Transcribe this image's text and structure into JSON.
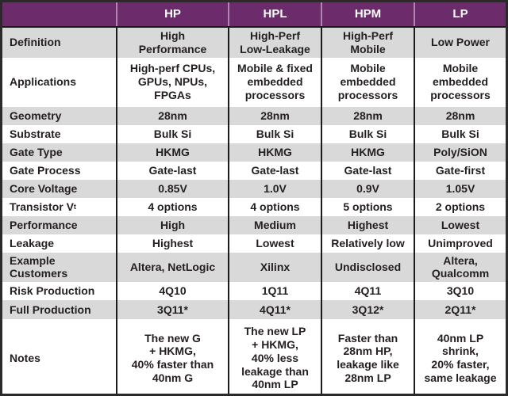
{
  "table": {
    "header": {
      "corner": "",
      "columns": [
        "HP",
        "HPL",
        "HPM",
        "LP"
      ]
    },
    "rows": [
      {
        "label": "Definition",
        "values": [
          "High\nPerformance",
          "High-Perf\nLow-Leakage",
          "High-Perf\nMobile",
          "Low Power"
        ]
      },
      {
        "label": "Applications",
        "values": [
          "High-perf CPUs,\nGPUs, NPUs,\nFPGAs",
          "Mobile & fixed\nembedded\nprocessors",
          "Mobile\nembedded\nprocessors",
          "Mobile\nembedded\nprocessors"
        ]
      },
      {
        "label": "Geometry",
        "values": [
          "28nm",
          "28nm",
          "28nm",
          "28nm"
        ]
      },
      {
        "label": "Substrate",
        "values": [
          "Bulk Si",
          "Bulk Si",
          "Bulk Si",
          "Bulk Si"
        ]
      },
      {
        "label": "Gate Type",
        "values": [
          "HKMG",
          "HKMG",
          "HKMG",
          "Poly/SiON"
        ]
      },
      {
        "label": "Gate Process",
        "values": [
          "Gate-last",
          "Gate-last",
          "Gate-last",
          "Gate-first"
        ]
      },
      {
        "label": "Core Voltage",
        "values": [
          "0.85V",
          "1.0V",
          "0.9V",
          "1.05V"
        ]
      },
      {
        "label": "Transistor V",
        "label_sub": "t",
        "values": [
          "4 options",
          "4 options",
          "5 options",
          "2 options"
        ]
      },
      {
        "label": "Performance",
        "values": [
          "High",
          "Medium",
          "Highest",
          "Lowest"
        ]
      },
      {
        "label": "Leakage",
        "values": [
          "Highest",
          "Lowest",
          "Relatively low",
          "Unimproved"
        ]
      },
      {
        "label": "Example\nCustomers",
        "values": [
          "Altera, NetLogic",
          "Xilinx",
          "Undisclosed",
          "Altera,\nQualcomm"
        ]
      },
      {
        "label": "Risk Production",
        "values": [
          "4Q10",
          "1Q11",
          "4Q11",
          "3Q10"
        ]
      },
      {
        "label": "Full Production",
        "values": [
          "3Q11*",
          "4Q11*",
          "3Q12*",
          "2Q11*"
        ]
      },
      {
        "label": "Notes",
        "values": [
          "The new G\n+ HKMG,\n40% faster than\n40nm G",
          "The new LP\n+ HKMG,\n40% less\nleakage than\n40nm LP",
          "Faster than\n28nm HP,\nleakage like\n28nm LP",
          "40nm LP\nshrink,\n20% faster,\nsame leakage"
        ]
      }
    ]
  },
  "colors": {
    "header_bg": "#6c2b6b",
    "header_text": "#ffffff",
    "header_divider": "#b286b2",
    "row_shade": "#d9d9d9",
    "row_plain": "#ffffff",
    "grid_line": "#1b1b1b",
    "outer_border": "#2a2a2a",
    "text": "#231f20"
  },
  "chart_data": {
    "type": "table",
    "title": "28nm process technology comparison",
    "columns": [
      "",
      "HP",
      "HPL",
      "HPM",
      "LP"
    ],
    "rows": [
      [
        "Definition",
        "High Performance",
        "High-Perf Low-Leakage",
        "High-Perf Mobile",
        "Low Power"
      ],
      [
        "Applications",
        "High-perf CPUs, GPUs, NPUs, FPGAs",
        "Mobile & fixed embedded processors",
        "Mobile embedded processors",
        "Mobile embedded processors"
      ],
      [
        "Geometry",
        "28nm",
        "28nm",
        "28nm",
        "28nm"
      ],
      [
        "Substrate",
        "Bulk Si",
        "Bulk Si",
        "Bulk Si",
        "Bulk Si"
      ],
      [
        "Gate Type",
        "HKMG",
        "HKMG",
        "HKMG",
        "Poly/SiON"
      ],
      [
        "Gate Process",
        "Gate-last",
        "Gate-last",
        "Gate-last",
        "Gate-first"
      ],
      [
        "Core Voltage",
        "0.85V",
        "1.0V",
        "0.9V",
        "1.05V"
      ],
      [
        "Transistor Vt",
        "4 options",
        "4 options",
        "5 options",
        "2 options"
      ],
      [
        "Performance",
        "High",
        "Medium",
        "Highest",
        "Lowest"
      ],
      [
        "Leakage",
        "Highest",
        "Lowest",
        "Relatively low",
        "Unimproved"
      ],
      [
        "Example Customers",
        "Altera, NetLogic",
        "Xilinx",
        "Undisclosed",
        "Altera, Qualcomm"
      ],
      [
        "Risk Production",
        "4Q10",
        "1Q11",
        "4Q11",
        "3Q10"
      ],
      [
        "Full Production",
        "3Q11*",
        "4Q11*",
        "3Q12*",
        "2Q11*"
      ],
      [
        "Notes",
        "The new G + HKMG, 40% faster than 40nm G",
        "The new LP + HKMG, 40% less leakage than 40nm LP",
        "Faster than 28nm HP, leakage like 28nm LP",
        "40nm LP shrink, 20% faster, same leakage"
      ]
    ]
  }
}
